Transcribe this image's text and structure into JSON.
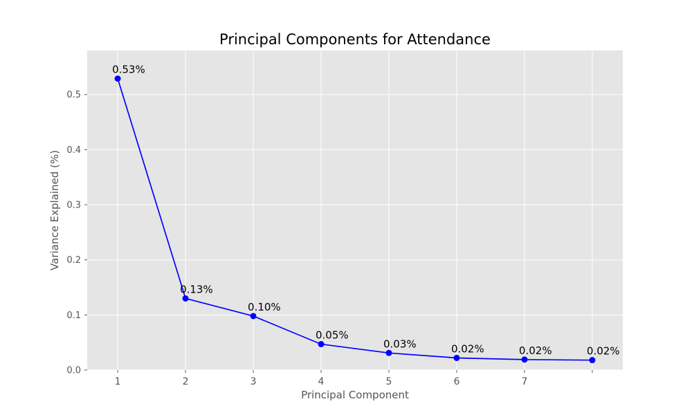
{
  "chart_data": {
    "type": "line",
    "title": "Principal Components for Attendance",
    "xlabel": "Principal Component",
    "ylabel": "Variance Explained (%)",
    "x": [
      1,
      2,
      3,
      4,
      5,
      6,
      7,
      8
    ],
    "x_tick_values": [
      1,
      2,
      3,
      4,
      5,
      6,
      7,
      8
    ],
    "x_tick_labels": [
      "1",
      "2",
      "3",
      "4",
      "5",
      "6",
      "7",
      ""
    ],
    "xlim": [
      0.55,
      8.45
    ],
    "ylim": [
      0,
      0.58
    ],
    "y_ticks": [
      0.0,
      0.1,
      0.2,
      0.3,
      0.4,
      0.5
    ],
    "y_tick_labels": [
      "0.0",
      "0.1",
      "0.2",
      "0.3",
      "0.4",
      "0.5"
    ],
    "series": [
      {
        "values": [
          0.529,
          0.13,
          0.098,
          0.047,
          0.031,
          0.022,
          0.019,
          0.018
        ],
        "data_labels": [
          "0.53%",
          "0.13%",
          "0.10%",
          "0.05%",
          "0.03%",
          "0.02%",
          "0.02%",
          "0.02%"
        ],
        "color": "#0000ff",
        "marker": "circle"
      }
    ],
    "grid": true,
    "legend": "none",
    "colors": {
      "plot_background": "#e5e5e5",
      "grid": "#ffffff",
      "line": "#0000ff",
      "tick_text": "#555555"
    }
  }
}
